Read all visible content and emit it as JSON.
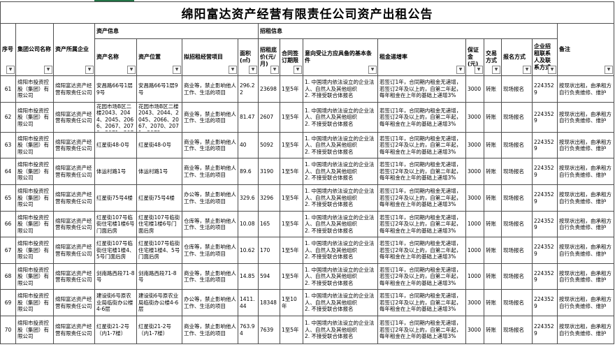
{
  "colors": {
    "accent": "#217346",
    "grid": "#4d4d4d"
  },
  "title": "绵阳富达资产经营有限责任公司资产出租公告",
  "table": {
    "groups": [
      {
        "label": "资产信息"
      },
      {
        "label": "招租信息"
      }
    ],
    "columns": [
      {
        "id": "seq",
        "label": "序号"
      },
      {
        "id": "group_company",
        "label": "集团公司名称"
      },
      {
        "id": "owner_company",
        "label": "资产所属企业"
      },
      {
        "id": "asset_name",
        "label": "资产名称"
      },
      {
        "id": "asset_location",
        "label": "资产位置"
      },
      {
        "id": "project",
        "label": "拟招租经营项目"
      },
      {
        "id": "area",
        "label": "面积(㎡)"
      },
      {
        "id": "base_price",
        "label": "招租底价(元/月)"
      },
      {
        "id": "term",
        "label": "合同签订期限"
      },
      {
        "id": "conditions",
        "label": "意向受让方应具备的基本条件"
      },
      {
        "id": "escalation",
        "label": "租金递增率"
      },
      {
        "id": "deposit",
        "label": "保证金(元)"
      },
      {
        "id": "trade_mode",
        "label": "交易方式"
      },
      {
        "id": "signup_mode",
        "label": "报名方式"
      },
      {
        "id": "contact",
        "label": "企业招租联系人及联系方式"
      },
      {
        "id": "remark",
        "label": "备注"
      }
    ],
    "filter_icon": "▼",
    "rows": [
      {
        "no": "61",
        "group_company": "绵阳市投资控股（集团）有限公司",
        "owner_company": "绵阳富达资产经营有限责任公司",
        "asset_name": "安昌路66号1层9号",
        "asset_location": "安昌路66号1层9号",
        "project": "商业等，禁止影响他人工作、生活的项目",
        "area": "296.22",
        "base_price": "23698",
        "term": "1至5年",
        "conditions": "1. 中国境内依法设立的企业法人、自然人及其他组织\n2. 不接受联合体报名",
        "escalation": "若签订1年，合同期内租金无递增，若签订2年及以上的，自第二年起，每年租金在上年的基础上递增3%",
        "deposit": "3000",
        "trade_mode": "转账",
        "signup_mode": "现场报名",
        "contact": "2243529",
        "remark": "按现状出租，由承租方自行负责维修、维护"
      },
      {
        "no": "62",
        "group_company": "绵阳市投资控股（集团）有限公司",
        "owner_company": "绵阳富达资产经营有限责任公司",
        "asset_name": "花园市场B区二楼2043、2044、2045、2066、2067、2070、2071、2072",
        "asset_location": "花园市场B区二楼2043、2044、2045、2066、2067、2070、2071、2072",
        "project": "商业等，禁止影响他人工作、生活的项目",
        "area": "81.47",
        "base_price": "2607",
        "term": "1至5年",
        "conditions": "1. 中国境内依法设立的企业法人、自然人及其他组织\n2. 不接受联合体报名",
        "escalation": "若签订1年，合同期内租金无递增，若签订2年及以上的，自第二年起，每年租金在上年的基础上递增3%",
        "deposit": "3000",
        "trade_mode": "转账",
        "signup_mode": "现场报名",
        "contact": "2243529",
        "remark": "按现状出租，由承租方自行负责维修、维护"
      },
      {
        "no": "63",
        "group_company": "绵阳市投资控股（集团）有限公司",
        "owner_company": "绵阳富达资产经营有限责任公司",
        "asset_name": "红星街48-0号",
        "asset_location": "红星街48-0号",
        "project": "商业等，禁止影响他人工作、生活的项目",
        "area": "40",
        "base_price": "5092",
        "term": "1至5年",
        "conditions": "1. 中国境内依法设立的企业法人、自然人及其他组织\n2. 不接受联合体报名",
        "escalation": "若签订1年，合同期内租金无递增，若签订2年及以上的，自第二年起，每年租金在上年的基础上递增3%",
        "deposit": "3000",
        "trade_mode": "转账",
        "signup_mode": "现场报名",
        "contact": "2243529",
        "remark": "按现状出租，由承租方自行负责维修、维护"
      },
      {
        "no": "64",
        "group_company": "绵阳市投资控股（集团）有限公司",
        "owner_company": "绵阳富达资产经营有限责任公司",
        "asset_name": "体运村路1号",
        "asset_location": "体运村路1号",
        "project": "商业等，禁止影响他人工作、生活的项目",
        "area": "89.6",
        "base_price": "3190",
        "term": "1至5年",
        "conditions": "1. 中国境内依法设立的企业法人、自然人及其他组织\n2. 不接受联合体报名",
        "escalation": "若签订1年，合同期内租金无递增，若签订2年及以上的，自第二年起，每年租金在上年的基础上递增3%",
        "deposit": "3000",
        "trade_mode": "转账",
        "signup_mode": "现场报名",
        "contact": "2243529",
        "remark": "按现状出租，由承租方自行负责维修、维护"
      },
      {
        "no": "65",
        "group_company": "绵阳市投资控股（集团）有限公司",
        "owner_company": "绵阳富达资产经营有限责任公司",
        "asset_name": "红星街75号4楼",
        "asset_location": "红星街75号4楼",
        "project": "办公等，禁止影响他人工作、生活的项目",
        "area": "329.6",
        "base_price": "3296",
        "term": "1至5年",
        "conditions": "1. 中国境内依法设立的企业法人、自然人及其他组织\n2. 不接受联合体报名",
        "escalation": "若签订1年，合同期内租金无递增，若签订2年及以上的，自第二年起，每年租金在上年的基础上递增3%",
        "deposit": "3000",
        "trade_mode": "转账",
        "signup_mode": "现场报名",
        "contact": "2243529",
        "remark": "按现状出租，由承租方自行负责维修、维护"
      },
      {
        "no": "66",
        "group_company": "绵阳市投资控股（集团）有限公司",
        "owner_company": "绵阳富达资产经营有限责任公司",
        "asset_name": "红星街107号临街住宅楼1楼6号门面后房",
        "asset_location": "红星街107号临街住宅楼1楼6号门面后房",
        "project": "仓库等，禁止影响他人工作、生活的项目",
        "area": "10.08",
        "base_price": "165",
        "term": "1至5年",
        "conditions": "1. 中国境内依法设立的企业法人、自然人及其他组织\n2. 不接受联合体报名",
        "escalation": "若签订1年，合同期内租金无递增，若签订2年及以上的，自第二年起，每年租金在上年的基础上递增3%",
        "deposit": "1000",
        "trade_mode": "转账",
        "signup_mode": "现场报名",
        "contact": "2243529",
        "remark": "按现状出租，由承租方自行负责维修、维护"
      },
      {
        "no": "67",
        "group_company": "绵阳市投资控股（集团）有限公司",
        "owner_company": "绵阳富达资产经营有限责任公司",
        "asset_name": "红星街107号临街住宅楼1楼4、5号门面后房",
        "asset_location": "红星街107号临街住宅楼1楼4、5号门面后房",
        "project": "仓库等，禁止影响他人工作、生活的项目",
        "area": "10.62",
        "base_price": "170",
        "term": "1至5年",
        "conditions": "1. 中国境内依法设立的企业法人、自然人及其他组织\n2. 不接受联合体报名",
        "escalation": "若签订1年，合同期内租金无递增，若签订2年及以上的，自第二年起，每年租金在上年的基础上递增3%",
        "deposit": "1000",
        "trade_mode": "转账",
        "signup_mode": "现场报名",
        "contact": "2243529",
        "remark": "按现状出租，由承租方自行负责维修、维护"
      },
      {
        "no": "68",
        "group_company": "绵阳市投资控股（集团）有限公司",
        "owner_company": "绵阳富达资产经营有限责任公司",
        "asset_name": "剑南路西段71-8号",
        "asset_location": "剑南路西段71-8号",
        "project": "商业等，禁止影响他人工作、生活的项目",
        "area": "14.85",
        "base_price": "594",
        "term": "1至5年",
        "conditions": "1. 中国境内依法设立的企业法人、自然人及其他组织\n2. 不接受联合体报名",
        "escalation": "若签订1年，合同期内租金无递增，若签订2年及以上的，自第二年起，每年租金在上年的基础上递增3%",
        "deposit": "1000",
        "trade_mode": "转账",
        "signup_mode": "现场报名",
        "contact": "2243529",
        "remark": "按现状出租，由承租方自行负责维修、维护"
      },
      {
        "no": "69",
        "group_company": "绵阳市投资控股（集团）有限公司",
        "owner_company": "绵阳富达资产经营有限责任公司",
        "asset_name": "建设街6号原农业局临街办公楼4-6层",
        "asset_location": "建设街6号原农业局临街办公楼4-6层",
        "project": "办公等，禁止影响他人工作、生活的项目",
        "area": "1411.44",
        "base_price": "18348",
        "term": "1至10年",
        "conditions": "1. 中国境内依法设立的企业法人、自然人及其他组织\n2. 不接受联合体报名",
        "escalation": "若签订1年，合同期内租金无递增，若签订2年及以上的，自第二年起，每年租金在上年的基础上递增3%",
        "deposit": "3000",
        "trade_mode": "转账",
        "signup_mode": "现场报名",
        "contact": "2243529",
        "remark": "按现状出租，由承租方自行负责维修、维护"
      },
      {
        "no": "70",
        "group_company": "绵阳市投资控股（集团）有限公司",
        "owner_company": "绵阳富达资产经营有限责任公司",
        "asset_name": "红星街21-2号（内1-7楼）",
        "asset_location": "红星街21-2号（内1-7楼）",
        "project": "商业等，禁止影响他人工作、生活的项目",
        "area": "763.94",
        "base_price": "7639",
        "term": "1至5年",
        "conditions": "1. 中国境内依法设立的企业法人、自然人及其他组织\n2. 不接受联合体报名",
        "escalation": "若签订1年，合同期内租金无递增，若签订2年及以上的，自第二年起，每年租金在上年的基础上递增3%",
        "deposit": "3000",
        "trade_mode": "转账",
        "signup_mode": "现场报名",
        "contact": "2243529",
        "remark": "按现状出租，由承租方自行负责维修、维护"
      }
    ]
  }
}
